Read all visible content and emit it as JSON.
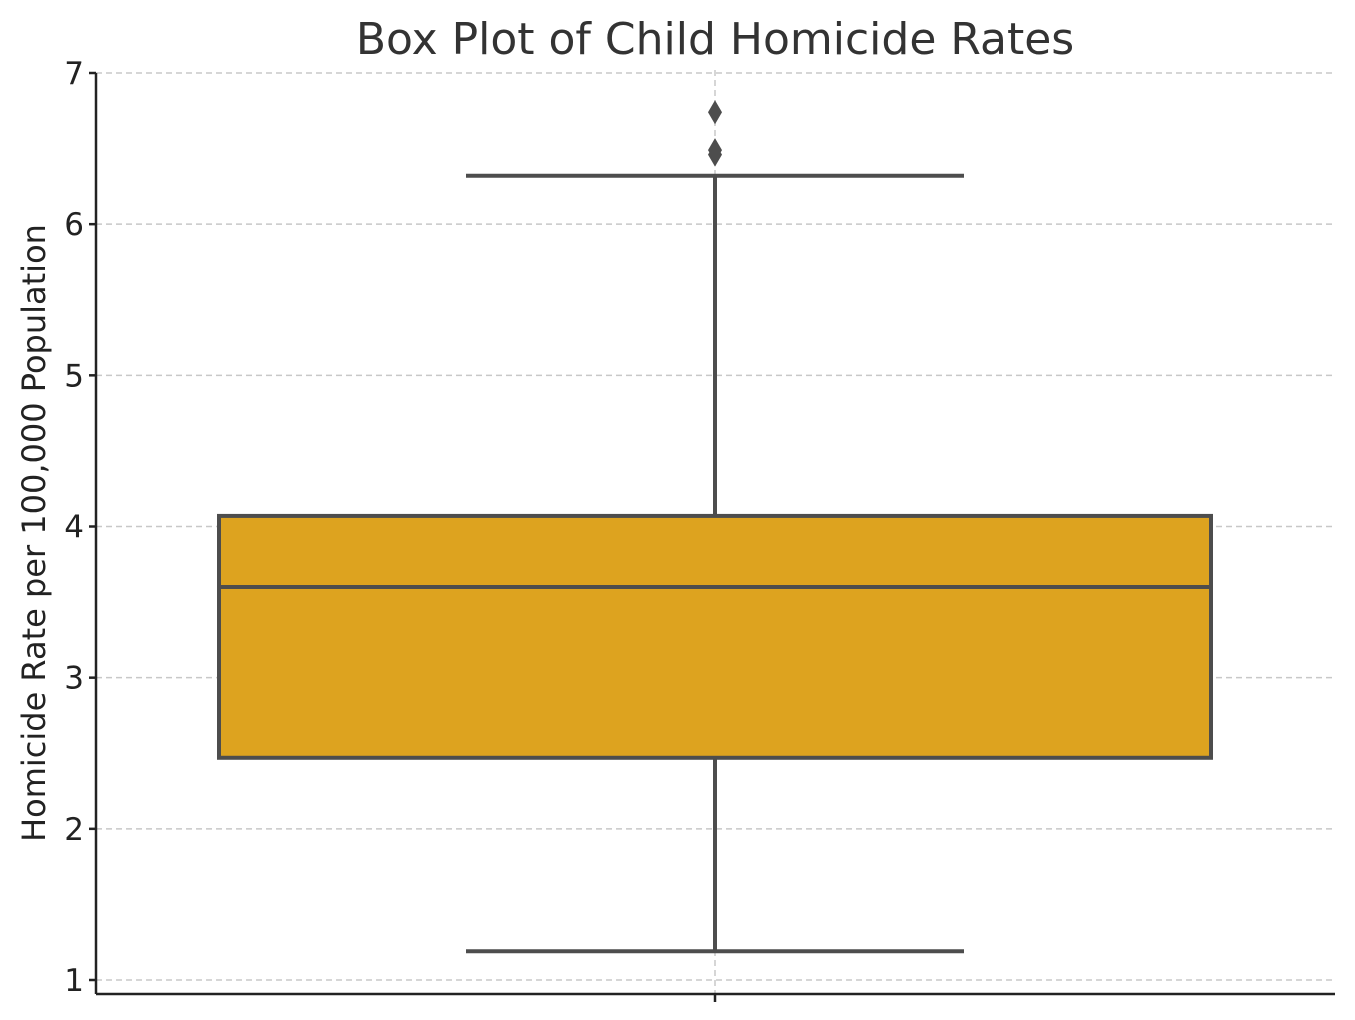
{
  "chart_data": {
    "type": "box",
    "title": "Box Plot of Child Homicide Rates",
    "xlabel": "",
    "ylabel": "Homicide Rate per 100,000 Population",
    "ylim": [
      0.9,
      7.0
    ],
    "yticks": [
      1,
      2,
      3,
      4,
      5,
      6,
      7
    ],
    "grid": true,
    "box": {
      "whisker_low": 1.19,
      "q1": 2.47,
      "median": 3.6,
      "q3": 4.07,
      "whisker_high": 6.32,
      "outliers": [
        6.74,
        6.49,
        6.46
      ]
    },
    "colors": {
      "box_fill": "#DDA31F",
      "box_edge": "#4D4D4D",
      "outlier": "#4D4D4D"
    }
  }
}
